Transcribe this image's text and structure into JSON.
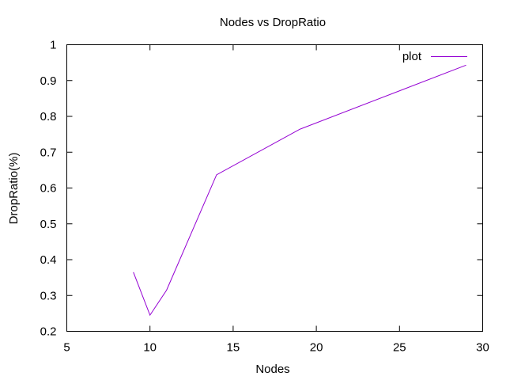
{
  "chart_data": {
    "type": "line",
    "title": "Nodes vs DropRatio",
    "xlabel": "Nodes",
    "ylabel": "DropRatio(%)",
    "xlim": [
      5,
      30
    ],
    "ylim": [
      0.2,
      1
    ],
    "xticks": [
      5,
      10,
      15,
      20,
      25,
      30
    ],
    "yticks": [
      0.2,
      0.3,
      0.4,
      0.5,
      0.6,
      0.7,
      0.8,
      0.9,
      1
    ],
    "xtick_labels": [
      "5",
      "10",
      "15",
      "20",
      "25",
      "30"
    ],
    "ytick_labels": [
      "0.2",
      "0.3",
      "0.4",
      "0.5",
      "0.6",
      "0.7",
      "0.8",
      "0.9",
      "1"
    ],
    "grid": false,
    "legend_position": "top-right",
    "series": [
      {
        "name": "plot",
        "color": "#9400d3",
        "x": [
          9,
          10,
          11,
          14,
          19,
          29
        ],
        "y": [
          0.365,
          0.245,
          0.315,
          0.637,
          0.764,
          0.943
        ]
      }
    ]
  }
}
